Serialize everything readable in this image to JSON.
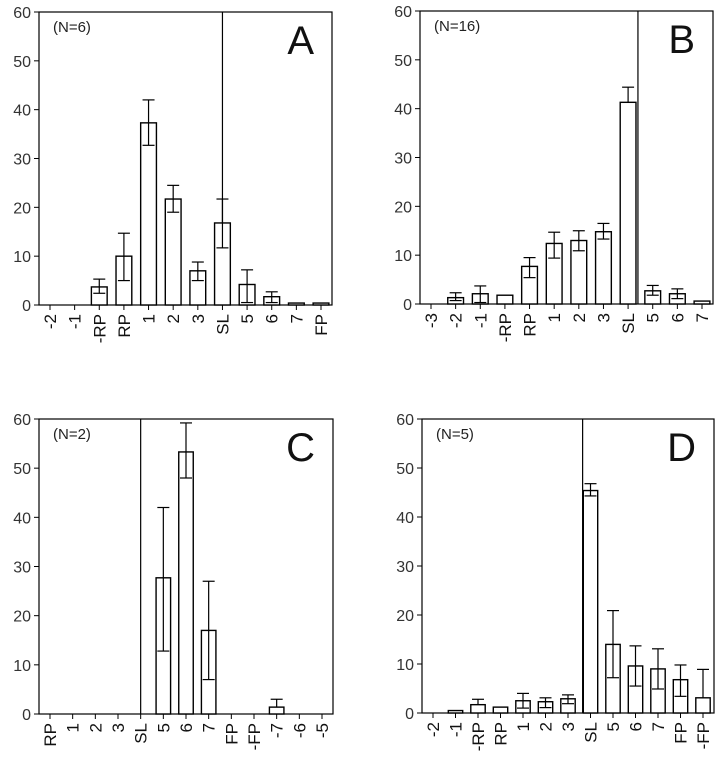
{
  "chart_data": [
    {
      "type": "bar",
      "panel_label": "A",
      "annotation": "(N=6)",
      "ylim": [
        0,
        60
      ],
      "yticks": [
        "0",
        "10",
        "20",
        "30",
        "40",
        "50",
        "60"
      ],
      "categories": [
        "-2",
        "-1",
        "-RP",
        "RP",
        "1",
        "2",
        "3",
        "SL",
        "5",
        "6",
        "7",
        "FP"
      ],
      "values": [
        0,
        0,
        3.7,
        10,
        37.3,
        21.7,
        7,
        16.8,
        4.2,
        1.7,
        0.4,
        0.4
      ],
      "error_low": [
        null,
        null,
        2.4,
        5,
        32.7,
        19,
        5,
        11.7,
        0.5,
        0.5,
        null,
        null
      ],
      "error_high": [
        null,
        null,
        5.3,
        14.7,
        42,
        24.5,
        8.8,
        21.7,
        7.2,
        2.7,
        null,
        null
      ],
      "divider_at_category": 7
    },
    {
      "type": "bar",
      "panel_label": "B",
      "annotation": "(N=16)",
      "ylim": [
        0,
        60
      ],
      "yticks": [
        "0",
        "10",
        "20",
        "30",
        "40",
        "50",
        "60"
      ],
      "categories": [
        "-3",
        "-2",
        "-1",
        "-RP",
        "RP",
        "1",
        "2",
        "3",
        "SL",
        "5",
        "6",
        "7"
      ],
      "values": [
        0,
        1.3,
        2.1,
        1.8,
        7.7,
        12.4,
        13,
        14.8,
        41.3,
        2.7,
        2.1,
        0.6
      ],
      "error_low": [
        null,
        0.7,
        0.3,
        null,
        5.4,
        9.4,
        10.9,
        13.3,
        null,
        1.8,
        1.1,
        null
      ],
      "error_high": [
        null,
        2.3,
        3.7,
        null,
        9.5,
        14.7,
        15,
        16.5,
        44.4,
        3.8,
        3.1,
        null
      ],
      "divider_at_category": 8.4
    },
    {
      "type": "bar",
      "panel_label": "C",
      "annotation": "(N=2)",
      "ylim": [
        0,
        60
      ],
      "yticks": [
        "0",
        "10",
        "20",
        "30",
        "40",
        "50",
        "60"
      ],
      "categories": [
        "RP",
        "1",
        "2",
        "3",
        "SL",
        "5",
        "6",
        "7",
        "FP",
        "-FP",
        "-7",
        "-6",
        "-5"
      ],
      "values": [
        0,
        0,
        0,
        0,
        0,
        27.7,
        53.3,
        17,
        0,
        0,
        1.4,
        0,
        0
      ],
      "error_low": [
        null,
        null,
        null,
        null,
        null,
        12.8,
        48,
        7,
        null,
        null,
        null,
        null,
        null
      ],
      "error_high": [
        null,
        null,
        null,
        null,
        null,
        42,
        59.2,
        27,
        null,
        null,
        3,
        null,
        null
      ],
      "divider_at_category": 4
    },
    {
      "type": "bar",
      "panel_label": "D",
      "annotation": "(N=5)",
      "ylim": [
        0,
        60
      ],
      "yticks": [
        "0",
        "10",
        "20",
        "30",
        "40",
        "50",
        "60"
      ],
      "categories": [
        "-2",
        "-1",
        "-RP",
        "RP",
        "1",
        "2",
        "3",
        "SL",
        "5",
        "6",
        "7",
        "FP",
        "-FP"
      ],
      "values": [
        0,
        0.5,
        1.7,
        1.2,
        2.5,
        2.3,
        2.9,
        45.4,
        14,
        9.6,
        9,
        6.8,
        3.1
      ],
      "error_low": [
        null,
        null,
        null,
        null,
        1,
        1.1,
        1.9,
        44.3,
        7.2,
        5.5,
        4.9,
        3.4,
        null
      ],
      "error_high": [
        null,
        null,
        2.8,
        null,
        4,
        3.1,
        3.7,
        46.8,
        20.9,
        13.7,
        13.1,
        9.8,
        8.9
      ],
      "divider_at_category": 6.65
    }
  ]
}
